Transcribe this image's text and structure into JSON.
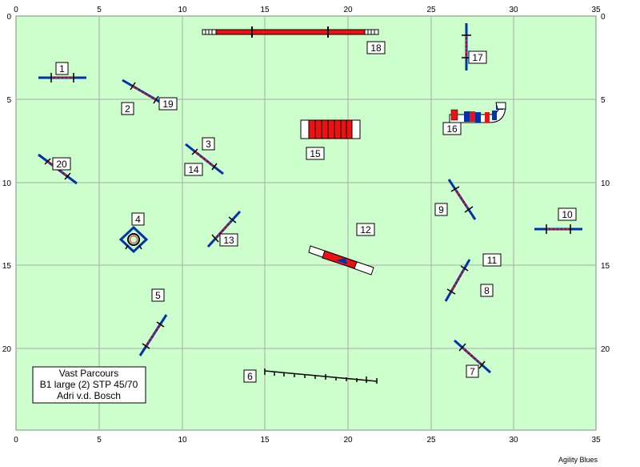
{
  "colors": {
    "field": "#ccffcc",
    "grid": "#aaaaaa",
    "bar_blue": "#0033aa",
    "red": "#ee1111",
    "dark": "#000000"
  },
  "axis": {
    "x_ticks": [
      "0",
      "5",
      "10",
      "15",
      "20",
      "25",
      "30",
      "35"
    ],
    "y_ticks": [
      "0",
      "5",
      "10",
      "15",
      "20"
    ]
  },
  "info_box": {
    "line1": "Vast Parcours",
    "line2": "B1 large (2) STP 45/70",
    "line3": "Adri v.d. Bosch"
  },
  "footer": "Agility Blues",
  "labels": {
    "n1": "1",
    "n2": "2",
    "n3": "3",
    "n4": "4",
    "n5": "5",
    "n6": "6",
    "n7": "7",
    "n8": "8",
    "n9": "9",
    "n10": "10",
    "n11": "11",
    "n12": "12",
    "n13": "13",
    "n14": "14",
    "n15": "15",
    "n16": "16",
    "n17": "17",
    "n18": "18",
    "n19": "19",
    "n20": "20"
  }
}
